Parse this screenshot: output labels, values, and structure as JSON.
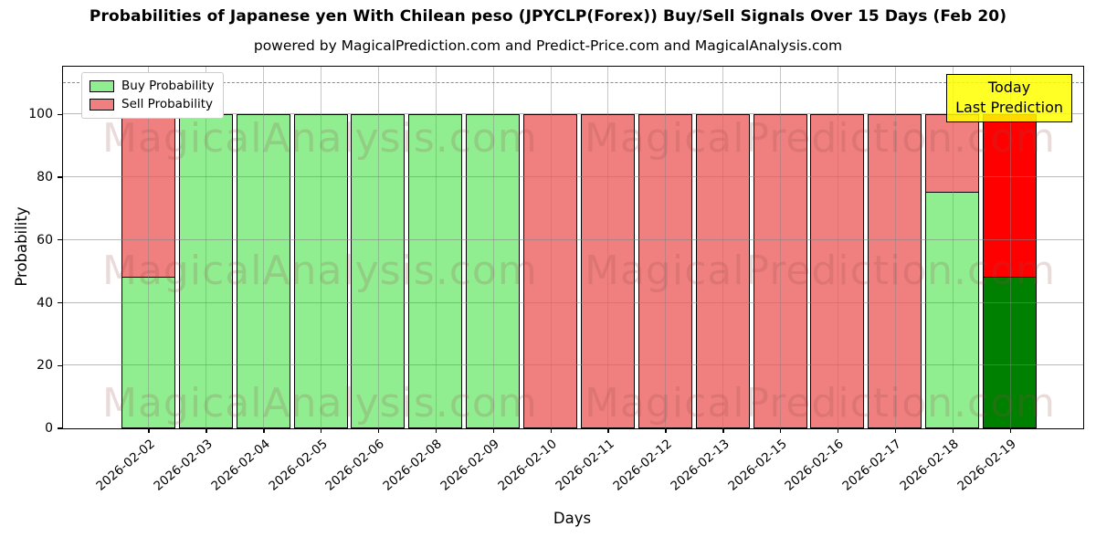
{
  "header": {
    "title": "Probabilities of Japanese yen With Chilean peso (JPYCLP(Forex)) Buy/Sell Signals Over 15 Days (Feb 20)",
    "subtitle": "powered by MagicalPrediction.com and Predict-Price.com and MagicalAnalysis.com"
  },
  "legend": {
    "buy_label": "Buy Probability",
    "sell_label": "Sell Probability"
  },
  "annotation": {
    "line1": "Today",
    "line2": "Last Prediction"
  },
  "axes": {
    "ylabel": "Probability",
    "xlabel": "Days",
    "yticks": [
      0,
      20,
      40,
      60,
      80,
      100
    ]
  },
  "watermarks": [
    "MagicalAnalysis.com",
    "MagicalPrediction.com"
  ],
  "colors": {
    "buy": "#90EE90",
    "sell": "#F08080",
    "today_buy": "#008000",
    "today_sell": "#FF0000",
    "annotation_bg": "#FFFF00",
    "grid": "#b0b0b0"
  },
  "chart_data": {
    "type": "bar",
    "stacked": true,
    "title": "Probabilities of Japanese yen With Chilean peso (JPYCLP(Forex)) Buy/Sell Signals Over 15 Days (Feb 20)",
    "xlabel": "Days",
    "ylabel": "Probability",
    "ylim": [
      0,
      115
    ],
    "dashed_line_y": 110,
    "grid": true,
    "legend_position": "upper left",
    "categories": [
      "2026-02-02",
      "2026-02-03",
      "2026-02-04",
      "2026-02-05",
      "2026-02-06",
      "2026-02-08",
      "2026-02-09",
      "2026-02-10",
      "2026-02-11",
      "2026-02-12",
      "2026-02-13",
      "2026-02-15",
      "2026-02-16",
      "2026-02-17",
      "2026-02-18",
      "2026-02-19"
    ],
    "series": [
      {
        "name": "Buy Probability",
        "color": "#90EE90",
        "values": [
          48,
          100,
          100,
          100,
          100,
          100,
          100,
          0,
          0,
          0,
          0,
          0,
          0,
          0,
          75,
          48
        ]
      },
      {
        "name": "Sell Probability",
        "color": "#F08080",
        "values": [
          52,
          0,
          0,
          0,
          0,
          0,
          0,
          100,
          100,
          100,
          100,
          100,
          100,
          100,
          25,
          52
        ]
      }
    ],
    "today_index": 15,
    "today_colors": {
      "buy": "#008000",
      "sell": "#FF0000"
    }
  }
}
